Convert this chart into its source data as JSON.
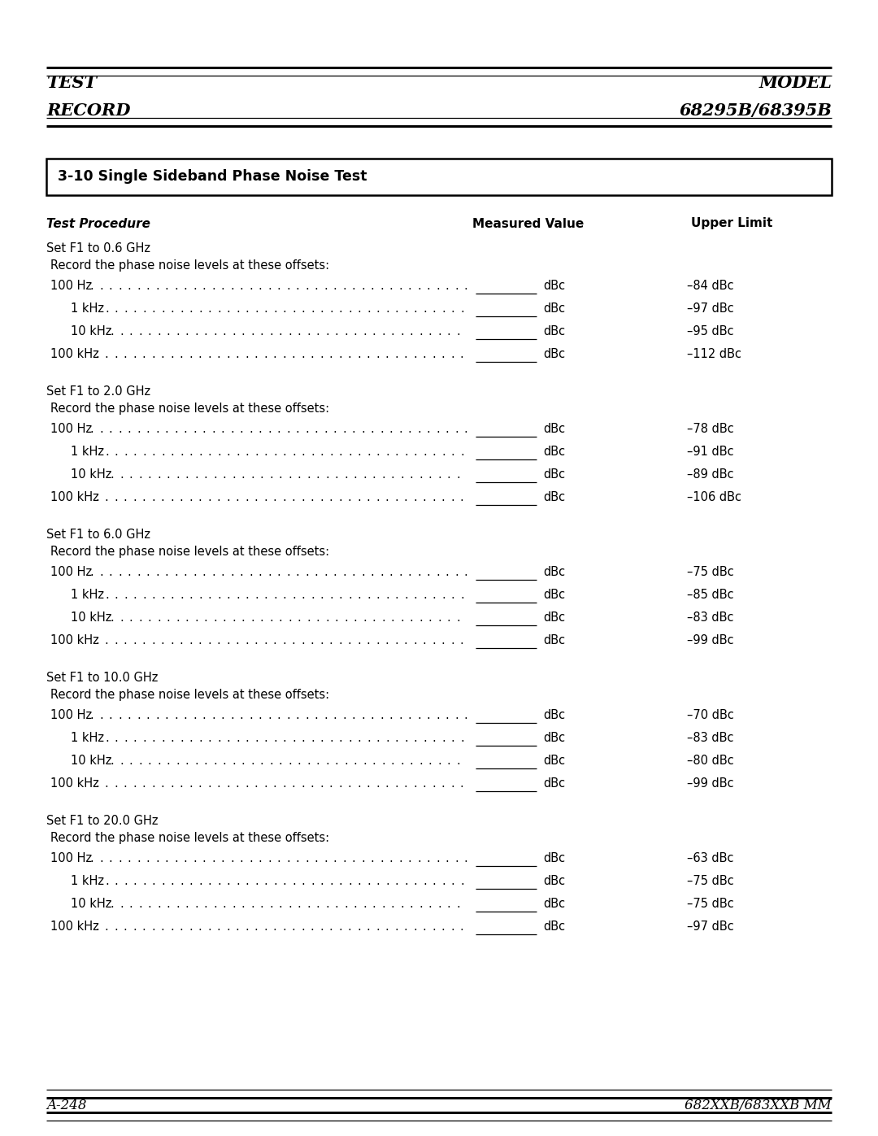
{
  "page_width": 10.8,
  "page_height": 13.97,
  "bg_color": "#ffffff",
  "header_left_line1": "TEST",
  "header_left_line2": "RECORD",
  "header_right_line1": "MODEL",
  "header_right_line2": "68295B/68395B",
  "section_title": "3-10 Single Sideband Phase Noise Test",
  "col_headers": [
    "Test Procedure",
    "Measured Value",
    "Upper Limit"
  ],
  "footer_left": "A-248",
  "footer_right": "682XXB/683XXB MM",
  "groups": [
    {
      "set_line": "Set F1 to 0.6 GHz",
      "record_line": "Record the phase noise levels at these offsets:",
      "rows": [
        {
          "label": "100 Hz",
          "indent": 0,
          "upper": "–84 dBc"
        },
        {
          "label": "1 kHz",
          "indent": 1,
          "upper": "–97 dBc"
        },
        {
          "label": "10 kHz",
          "indent": 1,
          "upper": "–95 dBc"
        },
        {
          "label": "100 kHz",
          "indent": 0,
          "upper": "–112 dBc"
        }
      ]
    },
    {
      "set_line": "Set F1 to 2.0 GHz",
      "record_line": "Record the phase noise levels at these offsets:",
      "rows": [
        {
          "label": "100 Hz",
          "indent": 0,
          "upper": "–78 dBc"
        },
        {
          "label": "1 kHz",
          "indent": 1,
          "upper": "–91 dBc"
        },
        {
          "label": "10 kHz",
          "indent": 1,
          "upper": "–89 dBc"
        },
        {
          "label": "100 kHz",
          "indent": 0,
          "upper": "–106 dBc"
        }
      ]
    },
    {
      "set_line": "Set F1 to 6.0 GHz",
      "record_line": "Record the phase noise levels at these offsets:",
      "rows": [
        {
          "label": "100 Hz",
          "indent": 0,
          "upper": "–75 dBc"
        },
        {
          "label": "1 kHz",
          "indent": 1,
          "upper": "–85 dBc"
        },
        {
          "label": "10 kHz",
          "indent": 1,
          "upper": "–83 dBc"
        },
        {
          "label": "100 kHz",
          "indent": 0,
          "upper": "–99 dBc"
        }
      ]
    },
    {
      "set_line": "Set F1 to 10.0 GHz",
      "record_line": "Record the phase noise levels at these offsets:",
      "rows": [
        {
          "label": "100 Hz",
          "indent": 0,
          "upper": "–70 dBc"
        },
        {
          "label": "1 kHz",
          "indent": 1,
          "upper": "–83 dBc"
        },
        {
          "label": "10 kHz",
          "indent": 1,
          "upper": "–80 dBc"
        },
        {
          "label": "100 kHz",
          "indent": 0,
          "upper": "–99 dBc"
        }
      ]
    },
    {
      "set_line": "Set F1 to 20.0 GHz",
      "record_line": "Record the phase noise levels at these offsets:",
      "rows": [
        {
          "label": "100 Hz",
          "indent": 0,
          "upper": "–63 dBc"
        },
        {
          "label": "1 kHz",
          "indent": 1,
          "upper": "–75 dBc"
        },
        {
          "label": "10 kHz",
          "indent": 1,
          "upper": "–75 dBc"
        },
        {
          "label": "100 kHz",
          "indent": 0,
          "upper": "–97 dBc"
        }
      ]
    }
  ]
}
